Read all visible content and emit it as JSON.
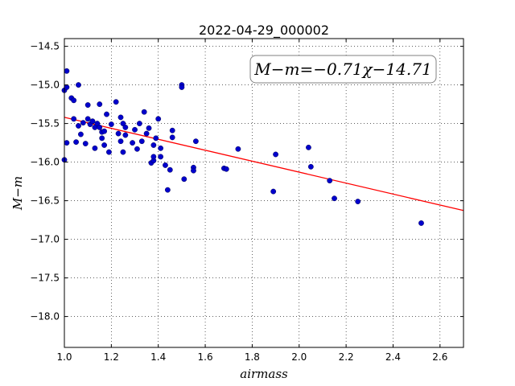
{
  "chart_data": {
    "type": "scatter",
    "title": "2022-04-29_000002",
    "xlabel": "airmass",
    "ylabel": "M−m",
    "xlim": [
      1.0,
      2.7
    ],
    "ylim": [
      -18.4,
      -14.4
    ],
    "y_inverted": true,
    "x_ticks": [
      "1.0",
      "1.2",
      "1.4",
      "1.6",
      "1.8",
      "2.0",
      "2.2",
      "2.4",
      "2.6"
    ],
    "y_ticks": [
      "−14.5",
      "−15.0",
      "−15.5",
      "−16.0",
      "−16.5",
      "−17.0",
      "−17.5",
      "−18.0"
    ],
    "grid": true,
    "annotation": "M−m=−0.71χ−14.71",
    "fit": {
      "slope": -0.71,
      "intercept": -14.71,
      "color": "#ff0000"
    },
    "point_color": "#0000cc",
    "points": [
      [
        1.0,
        -15.07
      ],
      [
        1.01,
        -14.82
      ],
      [
        1.01,
        -15.03
      ],
      [
        1.01,
        -15.75
      ],
      [
        1.0,
        -15.97
      ],
      [
        1.03,
        -15.17
      ],
      [
        1.04,
        -15.2
      ],
      [
        1.04,
        -15.44
      ],
      [
        1.05,
        -15.74
      ],
      [
        1.06,
        -15.53
      ],
      [
        1.06,
        -15.0
      ],
      [
        1.07,
        -15.64
      ],
      [
        1.08,
        -15.49
      ],
      [
        1.09,
        -15.76
      ],
      [
        1.1,
        -15.44
      ],
      [
        1.1,
        -15.26
      ],
      [
        1.11,
        -15.51
      ],
      [
        1.12,
        -15.47
      ],
      [
        1.13,
        -15.55
      ],
      [
        1.13,
        -15.82
      ],
      [
        1.14,
        -15.5
      ],
      [
        1.15,
        -15.25
      ],
      [
        1.15,
        -15.55
      ],
      [
        1.16,
        -15.61
      ],
      [
        1.16,
        -15.69
      ],
      [
        1.17,
        -15.6
      ],
      [
        1.17,
        -15.78
      ],
      [
        1.18,
        -15.38
      ],
      [
        1.19,
        -15.87
      ],
      [
        1.2,
        -15.51
      ],
      [
        1.22,
        -15.22
      ],
      [
        1.23,
        -15.63
      ],
      [
        1.24,
        -15.42
      ],
      [
        1.24,
        -15.73
      ],
      [
        1.25,
        -15.87
      ],
      [
        1.25,
        -15.5
      ],
      [
        1.26,
        -15.55
      ],
      [
        1.26,
        -15.65
      ],
      [
        1.29,
        -15.75
      ],
      [
        1.3,
        -15.58
      ],
      [
        1.31,
        -15.83
      ],
      [
        1.32,
        -15.5
      ],
      [
        1.33,
        -15.73
      ],
      [
        1.34,
        -15.35
      ],
      [
        1.35,
        -15.63
      ],
      [
        1.36,
        -15.56
      ],
      [
        1.37,
        -16.01
      ],
      [
        1.38,
        -15.98
      ],
      [
        1.38,
        -15.93
      ],
      [
        1.38,
        -15.78
      ],
      [
        1.39,
        -15.69
      ],
      [
        1.4,
        -15.44
      ],
      [
        1.41,
        -15.82
      ],
      [
        1.41,
        -15.93
      ],
      [
        1.43,
        -16.04
      ],
      [
        1.44,
        -16.36
      ],
      [
        1.45,
        -16.1
      ],
      [
        1.46,
        -15.59
      ],
      [
        1.46,
        -15.68
      ],
      [
        1.5,
        -15.0
      ],
      [
        1.5,
        -15.03
      ],
      [
        1.51,
        -16.22
      ],
      [
        1.55,
        -16.07
      ],
      [
        1.55,
        -16.11
      ],
      [
        1.56,
        -15.73
      ],
      [
        1.68,
        -16.08
      ],
      [
        1.69,
        -16.09
      ],
      [
        1.74,
        -15.83
      ],
      [
        1.89,
        -16.38
      ],
      [
        1.9,
        -15.9
      ],
      [
        2.04,
        -15.81
      ],
      [
        2.05,
        -16.06
      ],
      [
        2.13,
        -16.24
      ],
      [
        2.15,
        -16.47
      ],
      [
        2.25,
        -16.51
      ],
      [
        2.52,
        -16.79
      ]
    ]
  }
}
